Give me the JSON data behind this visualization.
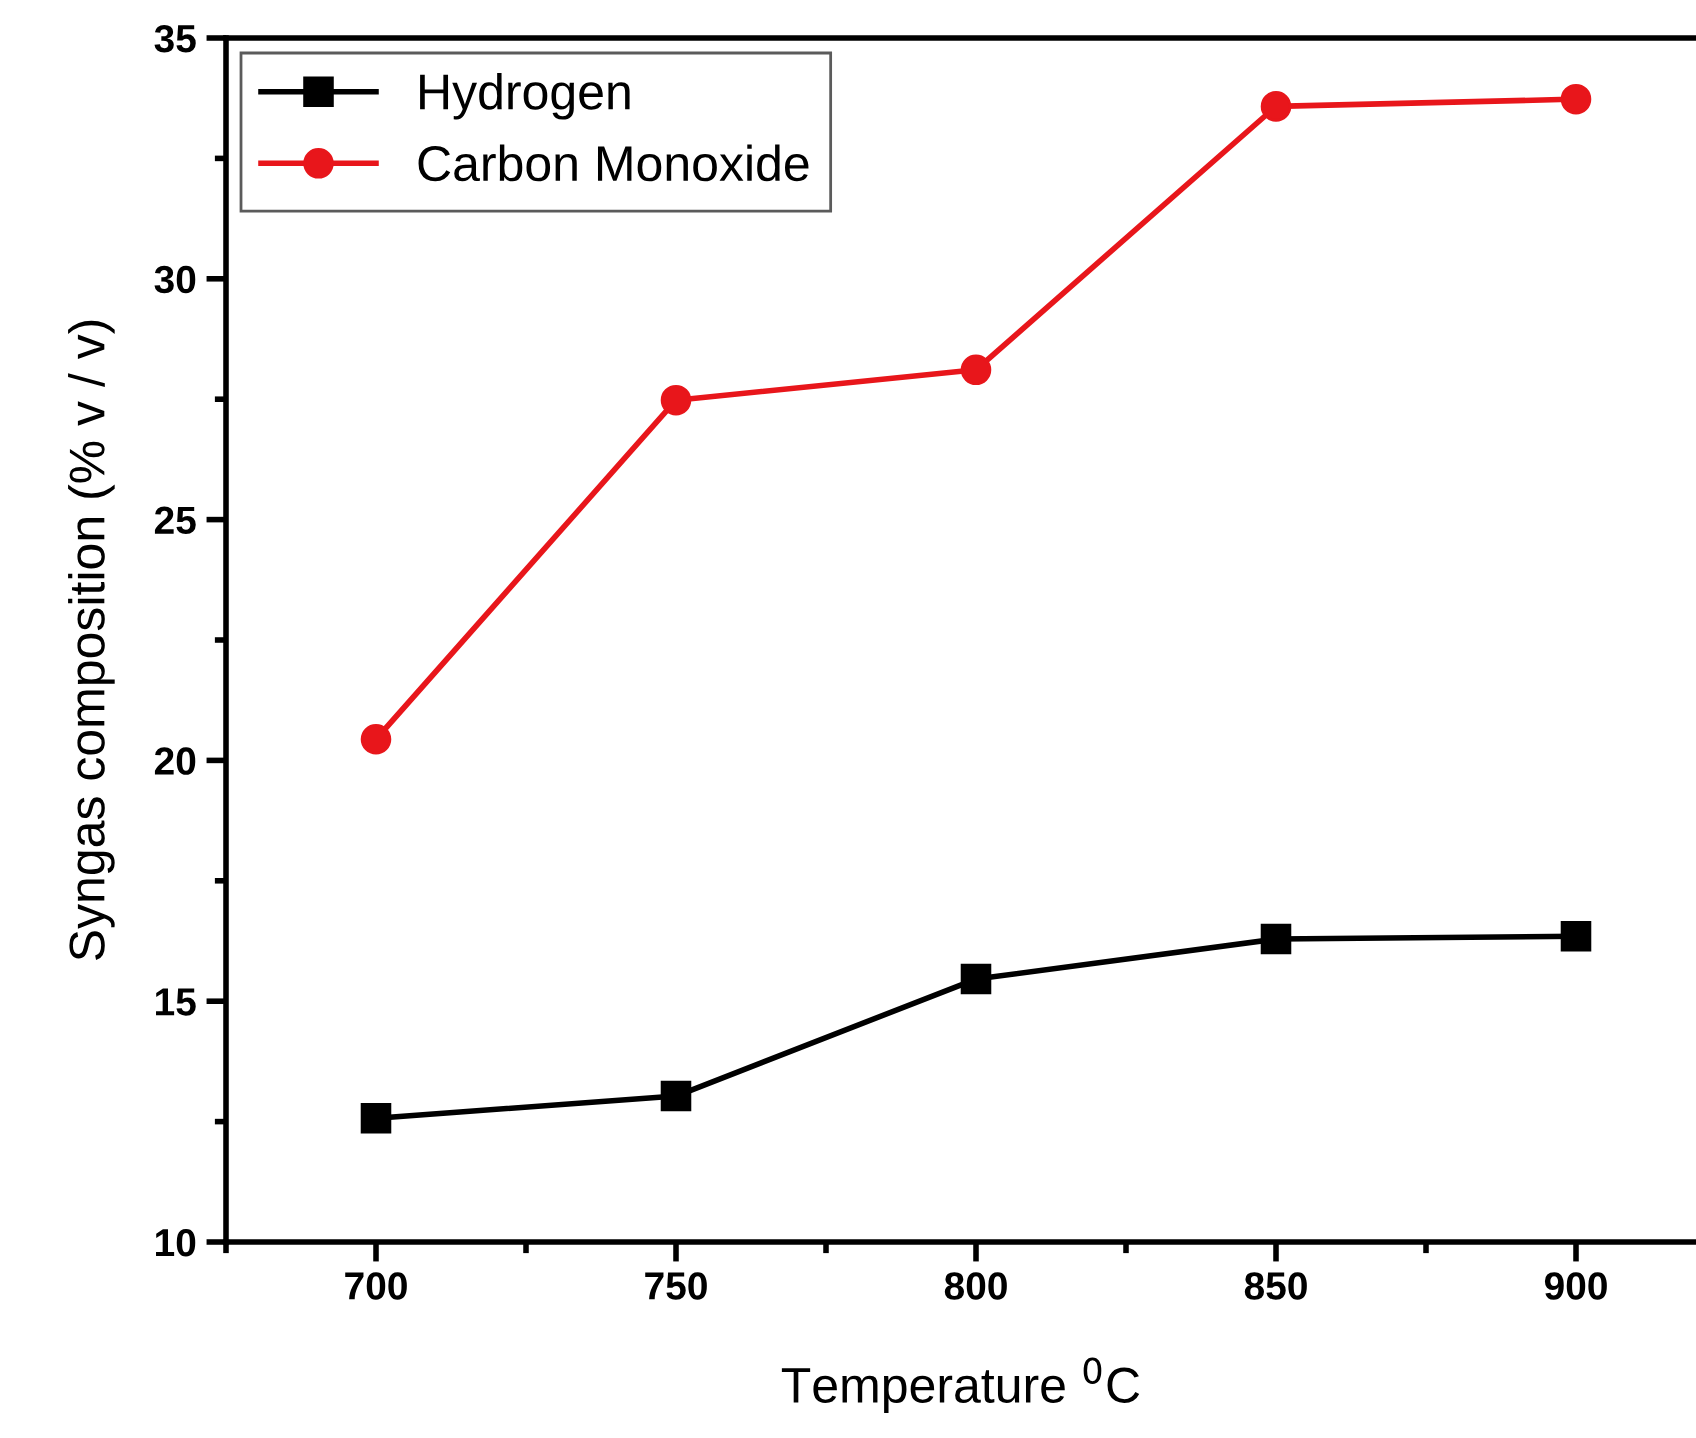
{
  "chart_data": {
    "type": "line",
    "xlabel": "Temperature $^{0}$C",
    "ylabel": "Syngas composition (% v / v)",
    "x": [
      700,
      750,
      800,
      850,
      900
    ],
    "series": [
      {
        "name": "Hydrogen",
        "color": "#000000",
        "marker": "square",
        "values": [
          12.57,
          13.03,
          15.46,
          16.29,
          16.35
        ]
      },
      {
        "name": "Carbon Monoxide",
        "color": "#e8161b",
        "marker": "circle",
        "values": [
          20.44,
          27.48,
          28.11,
          33.58,
          33.73
        ]
      }
    ],
    "xlim": [
      675,
      920
    ],
    "xticks": [
      700,
      750,
      800,
      850,
      900
    ],
    "ylim": [
      10,
      35
    ],
    "yticks": [
      10,
      15,
      20,
      25,
      30,
      35
    ],
    "grid": false,
    "legend": "top left",
    "line_style": "solid"
  }
}
